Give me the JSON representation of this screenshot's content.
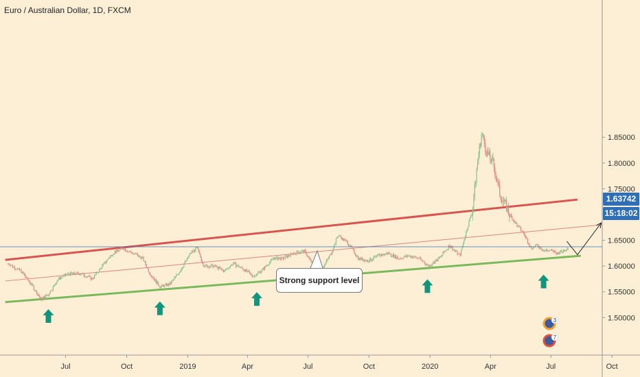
{
  "window": {
    "title": "Euro / Australian Dollar, 1D, FXCM"
  },
  "price_badge": "1.63742",
  "time_badge": "15:18:02",
  "callout_text": "Strong support level",
  "colors": {
    "background": "#fcefd6",
    "up": "#8ac18a",
    "down": "#e28585",
    "support": "#7ab85c",
    "resistance": "#d9534f",
    "midline": "#d98383",
    "arrow": "#13947f",
    "priceline": "#2f6fb8"
  },
  "chart_data": {
    "type": "candlestick",
    "title": "Euro / Australian Dollar, 1D, FXCM",
    "x_ticks": [
      "Jul",
      "Oct",
      "2019",
      "Apr",
      "Jul",
      "Oct",
      "2020",
      "Apr",
      "Jul",
      "Oct"
    ],
    "y_ticks": [
      "1.50000",
      "1.55000",
      "1.60000",
      "1.65000",
      "1.70000",
      "1.75000",
      "1.80000",
      "1.85000"
    ],
    "ylim": [
      1.46,
      1.87
    ],
    "current_price": 1.63742,
    "price_path": [
      [
        "2018-04-05",
        1.605
      ],
      [
        "2018-04-25",
        1.59
      ],
      [
        "2018-05-10",
        1.565
      ],
      [
        "2018-05-25",
        1.535
      ],
      [
        "2018-06-05",
        1.545
      ],
      [
        "2018-06-20",
        1.575
      ],
      [
        "2018-07-05",
        1.585
      ],
      [
        "2018-07-25",
        1.585
      ],
      [
        "2018-08-10",
        1.575
      ],
      [
        "2018-08-25",
        1.6
      ],
      [
        "2018-09-10",
        1.625
      ],
      [
        "2018-09-25",
        1.635
      ],
      [
        "2018-10-10",
        1.625
      ],
      [
        "2018-10-25",
        1.615
      ],
      [
        "2018-11-05",
        1.585
      ],
      [
        "2018-11-20",
        1.56
      ],
      [
        "2018-12-05",
        1.565
      ],
      [
        "2018-12-20",
        1.59
      ],
      [
        "2019-01-05",
        1.625
      ],
      [
        "2019-01-15",
        1.635
      ],
      [
        "2019-01-25",
        1.6
      ],
      [
        "2019-02-10",
        1.6
      ],
      [
        "2019-02-25",
        1.59
      ],
      [
        "2019-03-10",
        1.605
      ],
      [
        "2019-03-25",
        1.595
      ],
      [
        "2019-04-10",
        1.58
      ],
      [
        "2019-04-25",
        1.595
      ],
      [
        "2019-05-10",
        1.615
      ],
      [
        "2019-05-25",
        1.615
      ],
      [
        "2019-06-10",
        1.625
      ],
      [
        "2019-06-25",
        1.63
      ],
      [
        "2019-07-10",
        1.6
      ],
      [
        "2019-07-25",
        1.6
      ],
      [
        "2019-08-05",
        1.625
      ],
      [
        "2019-08-15",
        1.66
      ],
      [
        "2019-08-30",
        1.645
      ],
      [
        "2019-09-15",
        1.615
      ],
      [
        "2019-09-30",
        1.61
      ],
      [
        "2019-10-15",
        1.62
      ],
      [
        "2019-10-30",
        1.625
      ],
      [
        "2019-11-15",
        1.615
      ],
      [
        "2019-11-30",
        1.62
      ],
      [
        "2019-12-15",
        1.615
      ],
      [
        "2019-12-30",
        1.6
      ],
      [
        "2020-01-15",
        1.615
      ],
      [
        "2020-01-30",
        1.64
      ],
      [
        "2020-02-15",
        1.62
      ],
      [
        "2020-02-25",
        1.67
      ],
      [
        "2020-03-05",
        1.71
      ],
      [
        "2020-03-12",
        1.8
      ],
      [
        "2020-03-19",
        1.86
      ],
      [
        "2020-03-26",
        1.82
      ],
      [
        "2020-04-05",
        1.8
      ],
      [
        "2020-04-15",
        1.74
      ],
      [
        "2020-04-30",
        1.7
      ],
      [
        "2020-05-10",
        1.68
      ],
      [
        "2020-05-20",
        1.665
      ],
      [
        "2020-06-01",
        1.635
      ],
      [
        "2020-06-10",
        1.64
      ],
      [
        "2020-06-20",
        1.63
      ],
      [
        "2020-07-01",
        1.63
      ],
      [
        "2020-07-10",
        1.625
      ],
      [
        "2020-07-20",
        1.63
      ],
      [
        "2020-07-28",
        1.6374
      ]
    ],
    "support_line": {
      "start": [
        "2018-04-01",
        1.53
      ],
      "end": [
        "2020-08-15",
        1.62
      ]
    },
    "resistance_line": {
      "start": [
        "2018-04-01",
        1.612
      ],
      "end": [
        "2020-08-10",
        1.729
      ]
    },
    "mid_line": {
      "start": [
        "2018-04-01",
        1.571
      ],
      "end": [
        "2020-09-15",
        1.68
      ]
    },
    "projection": [
      [
        "2020-07-25",
        1.648
      ],
      [
        "2020-08-10",
        1.622
      ],
      [
        "2020-09-15",
        1.684
      ]
    ],
    "support_touches": [
      [
        "2018-06-05",
        1.543
      ],
      [
        "2018-11-20",
        1.558
      ],
      [
        "2019-04-15",
        1.576
      ],
      [
        "2019-12-28",
        1.601
      ],
      [
        "2020-06-20",
        1.61
      ]
    ]
  }
}
